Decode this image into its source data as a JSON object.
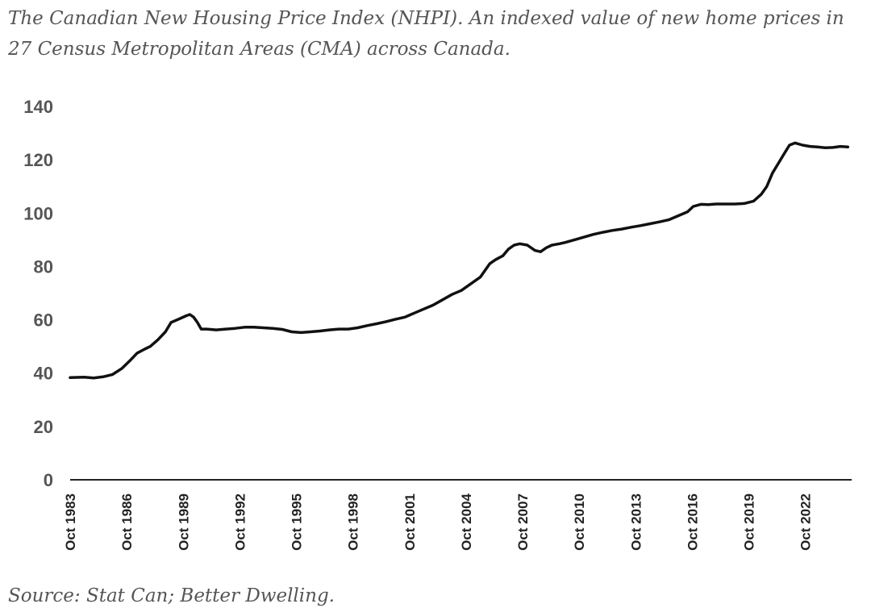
{
  "title": "The Canadian New Housing Price Index (NHPI). An indexed value of new home prices in 27 Census Metropolitan Areas (CMA) across Canada.",
  "source": "Source: Stat Can; Better Dwelling.",
  "colors": {
    "text": "#555555",
    "line": "#111111",
    "axis": "#222222"
  },
  "chart_data": {
    "type": "line",
    "title": "The Canadian New Housing Price Index (NHPI). An indexed value of new home prices in 27 Census Metropolitan Areas (CMA) across Canada.",
    "xlabel": "",
    "ylabel": "",
    "ylim": [
      0,
      140
    ],
    "xlim": [
      1983.75,
      2025.2
    ],
    "grid": false,
    "yticks": [
      0,
      20,
      40,
      60,
      80,
      100,
      120,
      140
    ],
    "xticks": [
      {
        "label": "Oct 1983",
        "x": 1983.75
      },
      {
        "label": "Oct 1986",
        "x": 1986.75
      },
      {
        "label": "Oct 1989",
        "x": 1989.75
      },
      {
        "label": "Oct 1992",
        "x": 1992.75
      },
      {
        "label": "Oct 1995",
        "x": 1995.75
      },
      {
        "label": "Oct 1998",
        "x": 1998.75
      },
      {
        "label": "Oct 2001",
        "x": 2001.75
      },
      {
        "label": "Oct 2004",
        "x": 2004.75
      },
      {
        "label": "Oct 2007",
        "x": 2007.75
      },
      {
        "label": "Oct 2010",
        "x": 2010.75
      },
      {
        "label": "Oct 2013",
        "x": 2013.75
      },
      {
        "label": "Oct 2016",
        "x": 2016.75
      },
      {
        "label": "Oct 2019",
        "x": 2019.75
      },
      {
        "label": "Oct 2022",
        "x": 2022.75
      }
    ],
    "series": [
      {
        "name": "NHPI",
        "x": [
          1983.75,
          1984.5,
          1985.0,
          1985.5,
          1986.0,
          1986.5,
          1986.9,
          1987.3,
          1987.7,
          1988.0,
          1988.4,
          1988.8,
          1989.1,
          1989.5,
          1989.9,
          1990.1,
          1990.3,
          1990.5,
          1990.7,
          1991.0,
          1991.5,
          1992.0,
          1992.5,
          1993.0,
          1993.5,
          1994.0,
          1994.5,
          1995.0,
          1995.5,
          1996.0,
          1996.5,
          1997.0,
          1997.5,
          1998.0,
          1998.5,
          1999.0,
          1999.5,
          2000.0,
          2000.5,
          2001.0,
          2001.5,
          2002.0,
          2002.5,
          2003.0,
          2003.5,
          2004.0,
          2004.5,
          2005.0,
          2005.5,
          2006.0,
          2006.3,
          2006.7,
          2007.0,
          2007.3,
          2007.6,
          2008.0,
          2008.4,
          2008.7,
          2009.0,
          2009.3,
          2009.7,
          2010.0,
          2010.5,
          2011.0,
          2011.5,
          2012.0,
          2012.5,
          2013.0,
          2013.5,
          2014.0,
          2014.5,
          2015.0,
          2015.5,
          2016.0,
          2016.5,
          2016.8,
          2017.2,
          2017.6,
          2018.0,
          2018.5,
          2019.0,
          2019.5,
          2020.0,
          2020.4,
          2020.7,
          2021.0,
          2021.3,
          2021.6,
          2021.9,
          2022.2,
          2022.6,
          2023.0,
          2023.4,
          2023.8,
          2024.2,
          2024.6,
          2025.0
        ],
        "values": [
          38.3,
          38.5,
          38.2,
          38.6,
          39.5,
          41.8,
          44.5,
          47.5,
          49.0,
          50.0,
          52.5,
          55.5,
          59.0,
          60.2,
          61.5,
          62.0,
          61.0,
          59.0,
          56.5,
          56.5,
          56.2,
          56.5,
          56.8,
          57.2,
          57.2,
          57.0,
          56.8,
          56.4,
          55.5,
          55.2,
          55.5,
          55.8,
          56.2,
          56.5,
          56.5,
          57.0,
          57.8,
          58.5,
          59.3,
          60.2,
          61.0,
          62.5,
          64.0,
          65.5,
          67.5,
          69.5,
          71.0,
          73.5,
          76.0,
          81.0,
          82.5,
          84.0,
          86.5,
          88.0,
          88.5,
          88.0,
          86.0,
          85.5,
          87.0,
          88.0,
          88.5,
          89.0,
          90.0,
          91.0,
          92.0,
          92.8,
          93.5,
          94.0,
          94.7,
          95.3,
          96.0,
          96.7,
          97.5,
          99.0,
          100.5,
          102.5,
          103.3,
          103.2,
          103.4,
          103.4,
          103.4,
          103.6,
          104.5,
          107.0,
          110.0,
          115.0,
          118.5,
          122.0,
          125.5,
          126.3,
          125.5,
          125.0,
          124.8,
          124.5,
          124.6,
          125.0,
          124.8
        ]
      }
    ]
  }
}
